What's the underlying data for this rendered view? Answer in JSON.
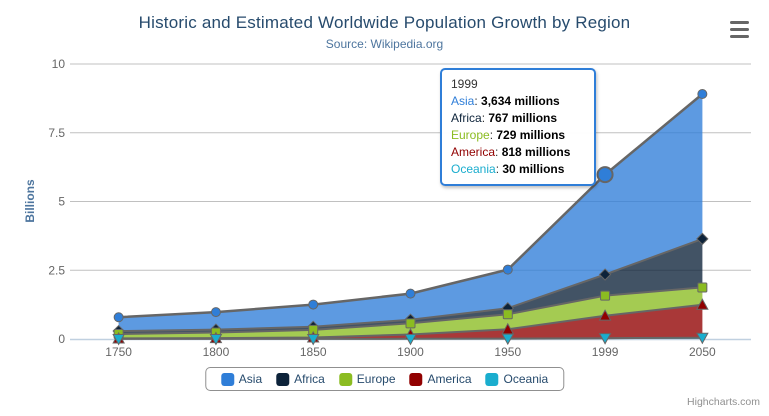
{
  "header": {
    "title": "Historic and Estimated Worldwide Population Growth by Region",
    "subtitle": "Source: Wikipedia.org"
  },
  "credits": "Highcharts.com",
  "palette": {
    "title_color": "#274b6d",
    "subtitle_color": "#4d759e",
    "axis_label_color": "#666666",
    "axis_title_color": "#4d759e",
    "grid_color": "#c0c0c0",
    "axis_line_color": "#c0d0e0",
    "series_outline_color": "#666666",
    "legend_text_color": "#274b6d",
    "tooltip_border_color": "#2f7ed8",
    "credits_color": "#909090"
  },
  "chart_data": {
    "type": "area",
    "stacking": "normal",
    "title": "Historic and Estimated Worldwide Population Growth by Region",
    "subtitle": "Source: Wikipedia.org",
    "categories": [
      "1750",
      "1800",
      "1850",
      "1900",
      "1950",
      "1999",
      "2050"
    ],
    "series": [
      {
        "name": "Asia",
        "color": "#2f7ed8",
        "marker": "circle",
        "values": [
          502,
          635,
          809,
          947,
          1402,
          3634,
          5268
        ]
      },
      {
        "name": "Africa",
        "color": "#0d233a",
        "marker": "diamond",
        "values": [
          106,
          107,
          111,
          133,
          221,
          767,
          1766
        ]
      },
      {
        "name": "Europe",
        "color": "#8bbc21",
        "marker": "square",
        "values": [
          163,
          203,
          276,
          408,
          547,
          729,
          628
        ]
      },
      {
        "name": "America",
        "color": "#910000",
        "marker": "triangle",
        "values": [
          18,
          31,
          54,
          156,
          339,
          818,
          1201
        ]
      },
      {
        "name": "Oceania",
        "color": "#1aadce",
        "marker": "triangle-down",
        "values": [
          2,
          2,
          2,
          6,
          13,
          30,
          46
        ]
      }
    ],
    "unit": "millions",
    "xlabel": "",
    "ylabel": "Billions",
    "yticks": [
      0,
      2.5,
      5,
      7.5,
      10
    ],
    "ylim": [
      0,
      10
    ],
    "grid": true,
    "legend_position": "bottom",
    "hover": {
      "category": "1999",
      "series": "Asia"
    }
  },
  "tooltip": {
    "header": "1999",
    "rows": [
      {
        "label": "Asia",
        "value": "3,634 millions",
        "color": "#2f7ed8"
      },
      {
        "label": "Africa",
        "value": "767 millions",
        "color": "#0d233a"
      },
      {
        "label": "Europe",
        "value": "729 millions",
        "color": "#8bbc21"
      },
      {
        "label": "America",
        "value": "818 millions",
        "color": "#910000"
      },
      {
        "label": "Oceania",
        "value": "30 millions",
        "color": "#1aadce"
      }
    ]
  },
  "legend": {
    "items": [
      "Asia",
      "Africa",
      "Europe",
      "America",
      "Oceania"
    ]
  }
}
